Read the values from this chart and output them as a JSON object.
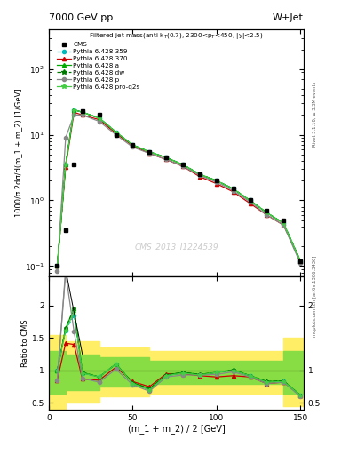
{
  "title_top": "7000 GeV pp",
  "title_right": "W+Jet",
  "xlabel": "(m_1 + m_2) / 2 [GeV]",
  "ylabel_main": "1000/σ 2dσ/d(m_1 + m_2) [1/GeV]",
  "ylabel_ratio": "Ratio to CMS",
  "watermark": "CMS_2013_I1224539",
  "right_label": "mcplots.cern.ch [arXiv:1306.3436]",
  "rivet_label": "Rivet 3.1.10; ≥ 3.3M events",
  "x_values": [
    5,
    10,
    15,
    20,
    30,
    40,
    50,
    60,
    70,
    80,
    90,
    100,
    110,
    120,
    130,
    140,
    150
  ],
  "cms_y": [
    0.1,
    0.35,
    3.5,
    23,
    20,
    10,
    7.0,
    5.5,
    4.5,
    3.5,
    2.5,
    2.0,
    1.5,
    1.0,
    0.7,
    0.5,
    0.12
  ],
  "p359_y": [
    0.1,
    3.5,
    24,
    22,
    18,
    11,
    7.0,
    5.5,
    4.5,
    3.5,
    2.5,
    2.0,
    1.5,
    1.0,
    0.65,
    0.45,
    0.12
  ],
  "p370_y": [
    0.1,
    3.2,
    22,
    20,
    17,
    10.5,
    6.8,
    5.2,
    4.2,
    3.3,
    2.3,
    1.8,
    1.35,
    0.9,
    0.6,
    0.42,
    0.12
  ],
  "pa_y": [
    0.1,
    3.5,
    24,
    22,
    18,
    11,
    7.0,
    5.5,
    4.5,
    3.5,
    2.5,
    2.0,
    1.5,
    1.0,
    0.65,
    0.45,
    0.12
  ],
  "pdw_y": [
    0.1,
    3.5,
    24,
    22,
    18,
    11,
    7.0,
    5.5,
    4.5,
    3.5,
    2.5,
    2.0,
    1.5,
    1.0,
    0.65,
    0.45,
    0.12
  ],
  "pp_y": [
    0.085,
    9.0,
    20,
    20,
    16,
    10,
    6.5,
    5.2,
    4.2,
    3.3,
    2.4,
    1.9,
    1.4,
    0.95,
    0.6,
    0.42,
    0.11
  ],
  "pproq_y": [
    0.1,
    3.5,
    24,
    22,
    18,
    11,
    7.0,
    5.5,
    4.5,
    3.5,
    2.5,
    2.0,
    1.5,
    1.0,
    0.65,
    0.45,
    0.12
  ],
  "x_ratio": [
    5,
    10,
    15,
    20,
    30,
    40,
    50,
    60,
    70,
    80,
    90,
    100,
    110,
    120,
    130,
    140,
    150
  ],
  "r359": [
    1.0,
    1.62,
    1.85,
    0.96,
    0.9,
    1.1,
    0.8,
    0.7,
    0.92,
    0.96,
    0.93,
    0.97,
    1.0,
    0.92,
    0.82,
    0.83,
    0.62
  ],
  "r370": [
    0.85,
    1.42,
    1.4,
    0.87,
    0.85,
    1.05,
    0.83,
    0.75,
    0.95,
    0.95,
    0.92,
    0.9,
    0.92,
    0.9,
    0.8,
    0.82,
    0.62
  ],
  "ra": [
    1.0,
    1.65,
    1.95,
    0.97,
    0.9,
    1.1,
    0.81,
    0.72,
    0.93,
    0.97,
    0.94,
    0.97,
    1.01,
    0.92,
    0.83,
    0.84,
    0.62
  ],
  "rdw": [
    1.0,
    1.65,
    1.95,
    0.97,
    0.9,
    1.1,
    0.81,
    0.72,
    0.93,
    0.97,
    0.94,
    0.97,
    1.01,
    0.92,
    0.83,
    0.84,
    0.62
  ],
  "rp": [
    0.85,
    2.5,
    1.6,
    0.88,
    0.82,
    1.02,
    0.78,
    0.68,
    0.9,
    0.93,
    0.93,
    0.94,
    0.98,
    0.9,
    0.8,
    0.82,
    0.6
  ],
  "rproq": [
    1.0,
    1.62,
    1.9,
    0.96,
    0.9,
    1.1,
    0.8,
    0.7,
    0.92,
    0.96,
    0.93,
    0.97,
    1.0,
    0.92,
    0.82,
    0.83,
    0.62
  ],
  "band_x_edges": [
    0,
    10,
    30,
    60,
    80,
    115,
    140,
    155
  ],
  "band_green_hi": [
    1.3,
    1.25,
    1.2,
    1.15,
    1.15,
    1.15,
    1.3
  ],
  "band_green_lo": [
    0.65,
    0.7,
    0.75,
    0.8,
    0.8,
    0.8,
    0.65
  ],
  "band_yellow_hi": [
    1.55,
    1.45,
    1.35,
    1.3,
    1.3,
    1.3,
    1.5
  ],
  "band_yellow_lo": [
    0.4,
    0.5,
    0.6,
    0.65,
    0.65,
    0.65,
    0.45
  ],
  "color_cms": "#000000",
  "color_359": "#00BBBB",
  "color_370": "#CC0000",
  "color_a": "#00AA00",
  "color_dw": "#007700",
  "color_p": "#888888",
  "color_proq": "#44CC44"
}
